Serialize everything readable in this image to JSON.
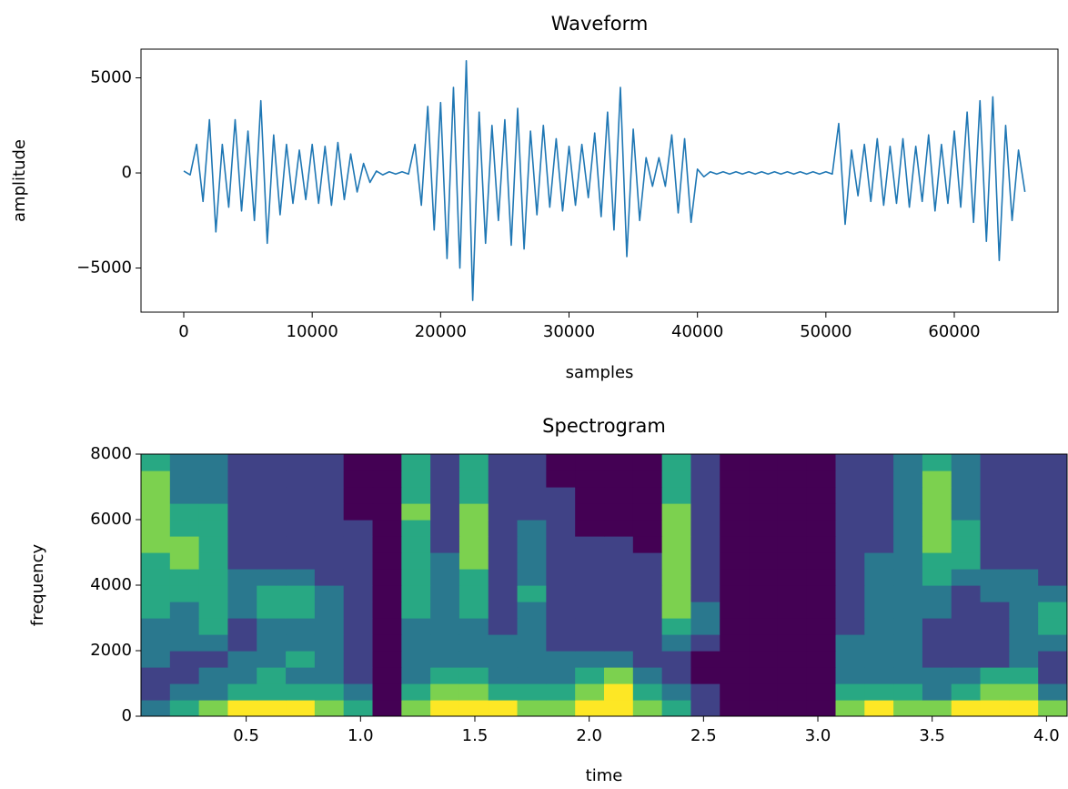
{
  "chart_data": [
    {
      "type": "line",
      "title": "Waveform",
      "x_label": "samples",
      "y_label": "amplitude",
      "color": "#1f77b4",
      "x": [
        0,
        500,
        1000,
        1500,
        2000,
        2500,
        3000,
        3500,
        4000,
        4500,
        5000,
        5500,
        6000,
        6500,
        7000,
        7500,
        8000,
        8500,
        9000,
        9500,
        10000,
        10500,
        11000,
        11500,
        12000,
        12500,
        13000,
        13500,
        14000,
        14500,
        15000,
        15500,
        16000,
        16500,
        17000,
        17500,
        18000,
        18500,
        19000,
        19500,
        20000,
        20500,
        21000,
        21500,
        22000,
        22500,
        23000,
        23500,
        24000,
        24500,
        25000,
        25500,
        26000,
        26500,
        27000,
        27500,
        28000,
        28500,
        29000,
        29500,
        30000,
        30500,
        31000,
        31500,
        32000,
        32500,
        33000,
        33500,
        34000,
        34500,
        35000,
        35500,
        36000,
        36500,
        37000,
        37500,
        38000,
        38500,
        39000,
        39500,
        40000,
        40500,
        41000,
        41500,
        42000,
        42500,
        43000,
        43500,
        44000,
        44500,
        45000,
        45500,
        46000,
        46500,
        47000,
        47500,
        48000,
        48500,
        49000,
        49500,
        50000,
        50500,
        51000,
        51500,
        52000,
        52500,
        53000,
        53500,
        54000,
        54500,
        55000,
        55500,
        56000,
        56500,
        57000,
        57500,
        58000,
        58500,
        59000,
        59500,
        60000,
        60500,
        61000,
        61500,
        62000,
        62500,
        63000,
        63500,
        64000,
        64500,
        65000,
        65500
      ],
      "values": [
        100,
        -100,
        1500,
        -1500,
        2800,
        -3100,
        1500,
        -1800,
        2800,
        -2000,
        2200,
        -2500,
        3800,
        -3700,
        2000,
        -2200,
        1500,
        -1600,
        1200,
        -1400,
        1500,
        -1600,
        1400,
        -1700,
        1600,
        -1400,
        1000,
        -1000,
        500,
        -500,
        100,
        -100,
        60,
        -60,
        60,
        -60,
        1500,
        -1700,
        3500,
        -3000,
        3700,
        -4500,
        4500,
        -5000,
        5900,
        -6700,
        3200,
        -3700,
        2500,
        -2500,
        2800,
        -3800,
        3400,
        -4000,
        2200,
        -2200,
        2500,
        -1800,
        1800,
        -2000,
        1400,
        -1700,
        1500,
        -1300,
        2100,
        -2300,
        3200,
        -3000,
        4500,
        -4400,
        2300,
        -2500,
        800,
        -700,
        800,
        -700,
        2000,
        -2100,
        1800,
        -2600,
        200,
        -200,
        60,
        -60,
        60,
        -60,
        60,
        -60,
        60,
        -60,
        60,
        -60,
        60,
        -60,
        60,
        -60,
        60,
        -60,
        60,
        -60,
        60,
        -60,
        2600,
        -2700,
        1200,
        -1200,
        1500,
        -1500,
        1800,
        -1700,
        1400,
        -1600,
        1800,
        -1800,
        1400,
        -1500,
        2000,
        -2000,
        1500,
        -1600,
        2200,
        -1800,
        3200,
        -2600,
        3800,
        -3600,
        4000,
        -4600,
        2500,
        -2500,
        1200,
        -1000
      ],
      "xlim": [
        -3330,
        68075
      ],
      "ylim": [
        -7320,
        6510
      ],
      "xticks": [
        0,
        10000,
        20000,
        30000,
        40000,
        50000,
        60000
      ],
      "yticks": [
        {
          "value": -5000,
          "label": "−5000"
        },
        0,
        5000
      ]
    },
    {
      "type": "heatmap",
      "title": "Spectrogram",
      "x_label": "time",
      "y_label": "frequency",
      "colormap": "viridis",
      "xlim": [
        0.04,
        4.09
      ],
      "ylim": [
        0,
        8000
      ],
      "xticks": [
        0.5,
        {
          "value": 1,
          "label": "1.0"
        },
        1.5,
        {
          "value": 2,
          "label": "2.0"
        },
        2.5,
        {
          "value": 3,
          "label": "3.0"
        },
        3.5,
        {
          "value": 4,
          "label": "4.0"
        }
      ],
      "yticks": [
        0,
        2000,
        4000,
        6000,
        8000
      ],
      "values": [
        [
          5,
          6,
          7,
          8,
          8,
          8,
          7,
          6,
          3,
          7,
          8,
          8,
          8,
          7,
          7,
          8,
          8,
          7,
          6,
          4,
          3,
          3,
          3,
          3,
          7,
          8,
          7,
          7,
          8,
          8,
          8,
          7
        ],
        [
          4,
          5,
          5,
          6,
          6,
          6,
          6,
          5,
          3,
          6,
          7,
          7,
          6,
          6,
          6,
          7,
          8,
          6,
          5,
          4,
          3,
          3,
          3,
          3,
          6,
          6,
          6,
          5,
          6,
          7,
          7,
          5
        ],
        [
          4,
          4,
          5,
          5,
          6,
          5,
          5,
          4,
          3,
          5,
          6,
          6,
          5,
          5,
          5,
          6,
          7,
          5,
          4,
          3,
          3,
          3,
          3,
          3,
          5,
          5,
          5,
          5,
          5,
          6,
          6,
          4
        ],
        [
          5,
          4,
          4,
          5,
          5,
          6,
          5,
          4,
          3,
          5,
          5,
          5,
          5,
          5,
          5,
          5,
          5,
          4,
          4,
          3,
          3,
          3,
          3,
          3,
          5,
          5,
          5,
          4,
          4,
          4,
          5,
          4
        ],
        [
          5,
          5,
          5,
          4,
          5,
          5,
          5,
          4,
          3,
          5,
          5,
          5,
          5,
          5,
          4,
          4,
          4,
          4,
          5,
          4,
          3,
          3,
          3,
          3,
          5,
          5,
          5,
          4,
          4,
          4,
          5,
          5
        ],
        [
          5,
          5,
          6,
          4,
          5,
          5,
          5,
          4,
          3,
          5,
          5,
          5,
          4,
          5,
          4,
          4,
          4,
          4,
          6,
          5,
          3,
          3,
          3,
          3,
          4,
          5,
          5,
          4,
          4,
          4,
          5,
          6
        ],
        [
          6,
          5,
          6,
          5,
          6,
          6,
          5,
          4,
          3,
          6,
          5,
          6,
          4,
          5,
          4,
          4,
          4,
          4,
          7,
          5,
          3,
          3,
          3,
          3,
          4,
          5,
          5,
          5,
          4,
          4,
          5,
          6
        ],
        [
          6,
          6,
          6,
          5,
          6,
          6,
          5,
          4,
          3,
          6,
          5,
          6,
          4,
          6,
          4,
          4,
          4,
          4,
          7,
          4,
          3,
          3,
          3,
          3,
          4,
          5,
          5,
          5,
          4,
          5,
          5,
          5
        ],
        [
          6,
          6,
          6,
          5,
          5,
          5,
          4,
          4,
          3,
          6,
          5,
          6,
          4,
          5,
          4,
          4,
          4,
          4,
          7,
          4,
          3,
          3,
          3,
          3,
          4,
          5,
          5,
          6,
          5,
          5,
          5,
          4
        ],
        [
          6,
          7,
          6,
          4,
          4,
          4,
          4,
          4,
          3,
          6,
          5,
          7,
          4,
          5,
          4,
          4,
          4,
          4,
          7,
          4,
          3,
          3,
          3,
          3,
          4,
          5,
          5,
          6,
          6,
          4,
          4,
          4
        ],
        [
          7,
          7,
          6,
          4,
          4,
          4,
          4,
          4,
          3,
          6,
          4,
          7,
          4,
          5,
          4,
          4,
          4,
          3,
          7,
          4,
          3,
          3,
          3,
          3,
          4,
          4,
          5,
          7,
          6,
          4,
          4,
          4
        ],
        [
          7,
          6,
          6,
          4,
          4,
          4,
          4,
          4,
          3,
          6,
          4,
          7,
          4,
          5,
          4,
          3,
          3,
          3,
          7,
          4,
          3,
          3,
          3,
          3,
          4,
          4,
          5,
          7,
          6,
          4,
          4,
          4
        ],
        [
          7,
          6,
          6,
          4,
          4,
          4,
          4,
          3,
          3,
          7,
          4,
          7,
          4,
          4,
          4,
          3,
          3,
          3,
          7,
          4,
          3,
          3,
          3,
          3,
          4,
          4,
          5,
          7,
          5,
          4,
          4,
          4
        ],
        [
          7,
          5,
          5,
          4,
          4,
          4,
          4,
          3,
          3,
          6,
          4,
          6,
          4,
          4,
          4,
          3,
          3,
          3,
          6,
          4,
          3,
          3,
          3,
          3,
          4,
          4,
          5,
          7,
          5,
          4,
          4,
          4
        ],
        [
          7,
          5,
          5,
          4,
          4,
          4,
          4,
          3,
          3,
          6,
          4,
          6,
          4,
          4,
          3,
          3,
          3,
          3,
          6,
          4,
          3,
          3,
          3,
          3,
          4,
          4,
          5,
          7,
          5,
          4,
          4,
          4
        ],
        [
          6,
          5,
          5,
          4,
          4,
          4,
          4,
          3,
          3,
          6,
          4,
          6,
          4,
          4,
          3,
          3,
          3,
          3,
          6,
          4,
          3,
          3,
          3,
          3,
          4,
          4,
          5,
          6,
          5,
          4,
          4,
          4
        ]
      ]
    }
  ]
}
